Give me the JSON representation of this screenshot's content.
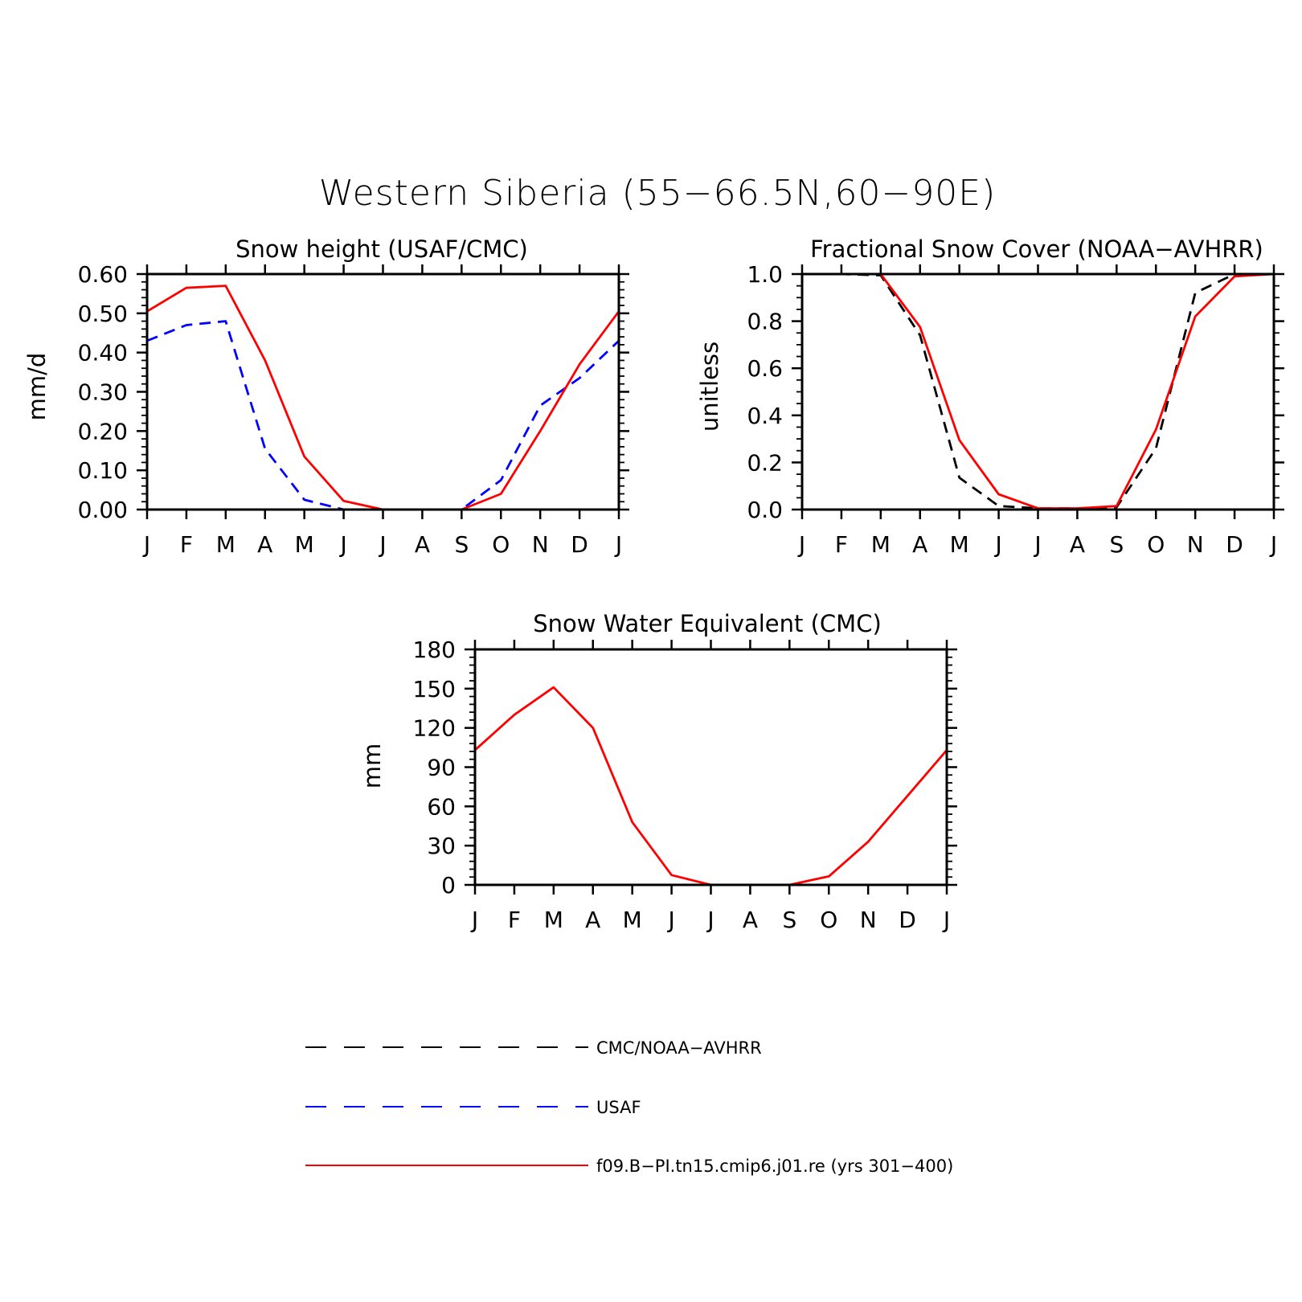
{
  "figure": {
    "title": "Western Siberia (55−66.5N,60−90E)"
  },
  "colors": {
    "observed_black": "#000000",
    "usaf_blue": "#0000ff",
    "model_red": "#ff0000"
  },
  "legend": {
    "items": [
      {
        "label": "CMC/NOAA−AVHRR",
        "color": "#000000",
        "style": "dashed"
      },
      {
        "label": "USAF",
        "color": "#0000ff",
        "style": "dashed"
      },
      {
        "label": "f09.B−PI.tn15.cmip6.j01.re (yrs 301−400)",
        "color": "#ff0000",
        "style": "solid"
      }
    ]
  },
  "chart_data": [
    {
      "id": "snow-height",
      "type": "line",
      "title": "Snow height (USAF/CMC)",
      "ylabel": "mm/d",
      "xlabel": "",
      "categories": [
        "J",
        "F",
        "M",
        "A",
        "M",
        "J",
        "J",
        "A",
        "S",
        "O",
        "N",
        "D",
        "J"
      ],
      "ylim": [
        0,
        0.6
      ],
      "yticks": [
        0,
        0.1,
        0.2,
        0.3,
        0.4,
        0.5,
        0.6
      ],
      "ytick_labels": [
        "0.00",
        "0.10",
        "0.20",
        "0.30",
        "0.40",
        "0.50",
        "0.60"
      ],
      "y_minor_step": 0.02,
      "series": [
        {
          "name": "CMC/NOAA−AVHRR",
          "color": "#000000",
          "style": "dashed",
          "values": [
            0,
            0,
            0,
            0,
            0,
            0,
            0,
            0,
            0,
            0,
            0,
            0,
            0
          ]
        },
        {
          "name": "USAF",
          "color": "#0000ff",
          "style": "dashed",
          "values": [
            0.43,
            0.47,
            0.48,
            0.155,
            0.025,
            0.0,
            0.0,
            0.0,
            0.0,
            0.075,
            0.265,
            0.335,
            0.43
          ]
        },
        {
          "name": "f09.B−PI.tn15.cmip6.j01.re (yrs 301−400)",
          "color": "#ff0000",
          "style": "solid",
          "values": [
            0.505,
            0.565,
            0.57,
            0.38,
            0.135,
            0.022,
            0.0,
            0.0,
            0.0,
            0.04,
            0.2,
            0.37,
            0.505
          ]
        }
      ]
    },
    {
      "id": "snow-cover",
      "type": "line",
      "title": "Fractional Snow Cover (NOAA−AVHRR)",
      "ylabel": "unitless",
      "xlabel": "",
      "categories": [
        "J",
        "F",
        "M",
        "A",
        "M",
        "J",
        "J",
        "A",
        "S",
        "O",
        "N",
        "D",
        "J"
      ],
      "ylim": [
        0,
        1.0
      ],
      "yticks": [
        0,
        0.2,
        0.4,
        0.6,
        0.8,
        1.0
      ],
      "ytick_labels": [
        "0.0",
        "0.2",
        "0.4",
        "0.6",
        "0.8",
        "1.0"
      ],
      "y_minor_step": 0.05,
      "series": [
        {
          "name": "CMC/NOAA−AVHRR",
          "color": "#000000",
          "style": "dashed",
          "values": [
            1.0,
            1.0,
            0.995,
            0.74,
            0.135,
            0.015,
            0.005,
            0.005,
            0.01,
            0.26,
            0.92,
            1.0,
            1.0
          ]
        },
        {
          "name": "f09.B−PI.tn15.cmip6.j01.re (yrs 301−400)",
          "color": "#ff0000",
          "style": "solid",
          "values": [
            1.0,
            1.0,
            1.0,
            0.775,
            0.295,
            0.065,
            0.005,
            0.005,
            0.015,
            0.34,
            0.82,
            0.99,
            1.0
          ]
        }
      ]
    },
    {
      "id": "swe",
      "type": "line",
      "title": "Snow Water Equivalent (CMC)",
      "ylabel": "mm",
      "xlabel": "",
      "categories": [
        "J",
        "F",
        "M",
        "A",
        "M",
        "J",
        "J",
        "A",
        "S",
        "O",
        "N",
        "D",
        "J"
      ],
      "ylim": [
        0,
        180
      ],
      "yticks": [
        0,
        30,
        60,
        90,
        120,
        150,
        180
      ],
      "ytick_labels": [
        "0",
        "30",
        "60",
        "90",
        "120",
        "150",
        "180"
      ],
      "y_minor_step": 6,
      "series": [
        {
          "name": "CMC/NOAA−AVHRR",
          "color": "#000000",
          "style": "dashed",
          "values": [
            0,
            0,
            0,
            0,
            0,
            0,
            0,
            0,
            0,
            0,
            0,
            0,
            0
          ]
        },
        {
          "name": "f09.B−PI.tn15.cmip6.j01.re (yrs 301−400)",
          "color": "#ff0000",
          "style": "solid",
          "values": [
            103,
            130,
            151,
            120,
            48,
            7.5,
            0,
            0,
            0,
            6.5,
            33,
            68,
            103
          ]
        }
      ]
    }
  ]
}
